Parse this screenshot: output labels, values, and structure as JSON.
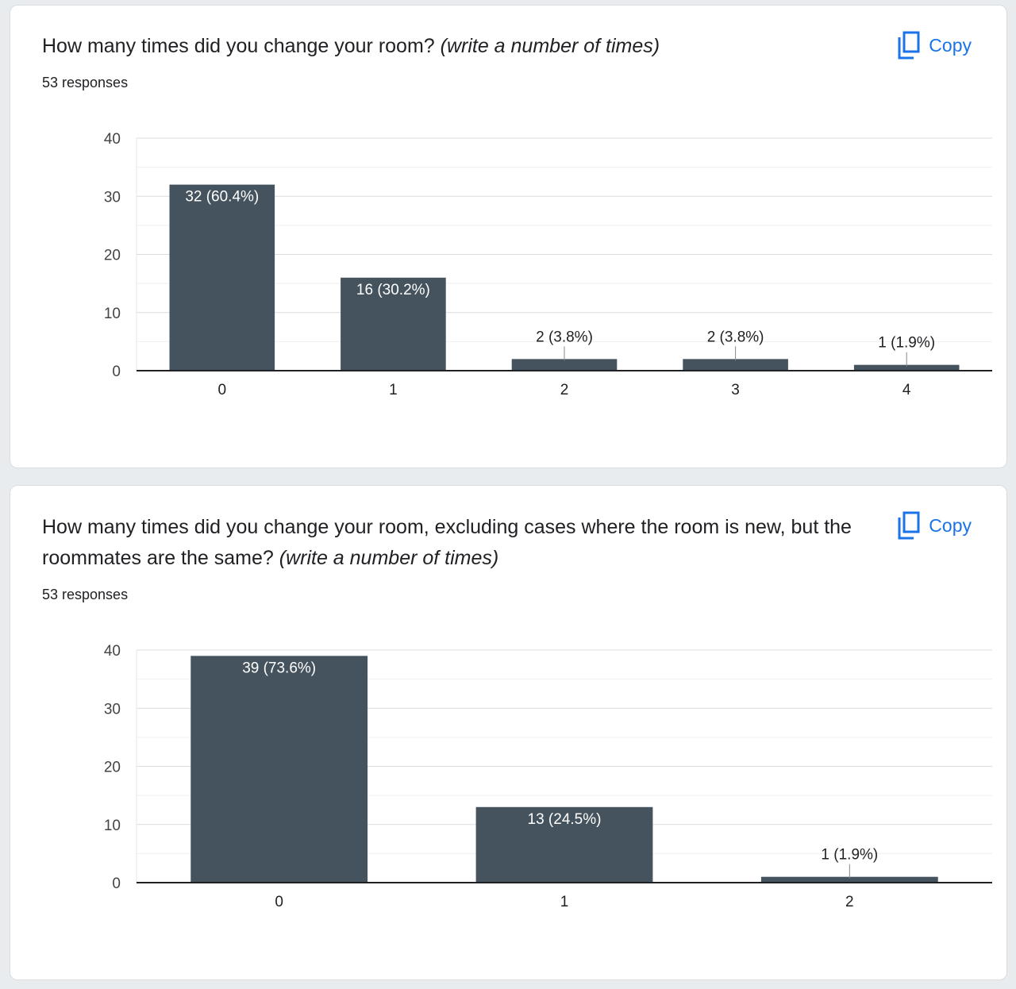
{
  "colors": {
    "bar": "#44535d",
    "accent": "#1a73e8",
    "grid": "#e0e0e0",
    "axis": "#202124"
  },
  "cards": [
    {
      "title_main": "How many times did you change your room? ",
      "title_em": "(write a number of times)",
      "responses": "53 responses",
      "copy_label": "Copy",
      "copy_icon": "copy-icon"
    },
    {
      "title_main": "How many times did you change your room, excluding cases where the room is new, but the roommates are the same? ",
      "title_em": "(write a number of times)",
      "responses": "53 responses",
      "copy_label": "Copy",
      "copy_icon": "copy-icon"
    }
  ],
  "chart_data": [
    {
      "type": "bar",
      "categories": [
        "0",
        "1",
        "2",
        "3",
        "4"
      ],
      "values": [
        32,
        16,
        2,
        2,
        1
      ],
      "data_labels": [
        "32 (60.4%)",
        "16 (30.2%)",
        "2 (3.8%)",
        "2 (3.8%)",
        "1 (1.9%)"
      ],
      "yticks": [
        "0",
        "10",
        "20",
        "30",
        "40"
      ],
      "ylim": [
        0,
        40
      ],
      "grid": true
    },
    {
      "type": "bar",
      "categories": [
        "0",
        "1",
        "2"
      ],
      "values": [
        39,
        13,
        1
      ],
      "data_labels": [
        "39 (73.6%)",
        "13 (24.5%)",
        "1 (1.9%)"
      ],
      "yticks": [
        "0",
        "10",
        "20",
        "30",
        "40"
      ],
      "ylim": [
        0,
        40
      ],
      "grid": true
    }
  ]
}
